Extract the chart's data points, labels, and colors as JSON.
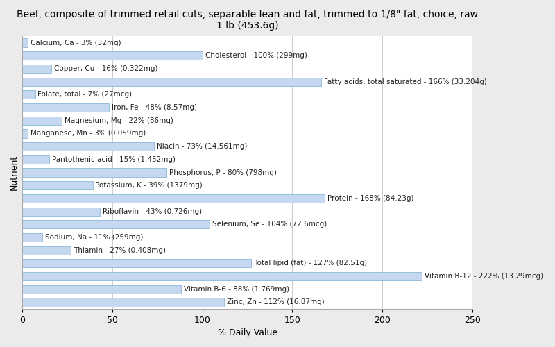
{
  "title": "Beef, composite of trimmed retail cuts, separable lean and fat, trimmed to 1/8\" fat, choice, raw\n1 lb (453.6g)",
  "xlabel": "% Daily Value",
  "ylabel": "Nutrient",
  "nutrients": [
    {
      "label": "Calcium, Ca - 3% (32mg)",
      "value": 3
    },
    {
      "label": "Cholesterol - 100% (299mg)",
      "value": 100
    },
    {
      "label": "Copper, Cu - 16% (0.322mg)",
      "value": 16
    },
    {
      "label": "Fatty acids, total saturated - 166% (33.204g)",
      "value": 166
    },
    {
      "label": "Folate, total - 7% (27mcg)",
      "value": 7
    },
    {
      "label": "Iron, Fe - 48% (8.57mg)",
      "value": 48
    },
    {
      "label": "Magnesium, Mg - 22% (86mg)",
      "value": 22
    },
    {
      "label": "Manganese, Mn - 3% (0.059mg)",
      "value": 3
    },
    {
      "label": "Niacin - 73% (14.561mg)",
      "value": 73
    },
    {
      "label": "Pantothenic acid - 15% (1.452mg)",
      "value": 15
    },
    {
      "label": "Phosphorus, P - 80% (798mg)",
      "value": 80
    },
    {
      "label": "Potassium, K - 39% (1379mg)",
      "value": 39
    },
    {
      "label": "Protein - 168% (84.23g)",
      "value": 168
    },
    {
      "label": "Riboflavin - 43% (0.726mg)",
      "value": 43
    },
    {
      "label": "Selenium, Se - 104% (72.6mcg)",
      "value": 104
    },
    {
      "label": "Sodium, Na - 11% (259mg)",
      "value": 11
    },
    {
      "label": "Thiamin - 27% (0.408mg)",
      "value": 27
    },
    {
      "label": "Total lipid (fat) - 127% (82.51g)",
      "value": 127
    },
    {
      "label": "Vitamin B-12 - 222% (13.29mcg)",
      "value": 222
    },
    {
      "label": "Vitamin B-6 - 88% (1.769mg)",
      "value": 88
    },
    {
      "label": "Zinc, Zn - 112% (16.87mg)",
      "value": 112
    }
  ],
  "bar_color": "#c5d8f0",
  "bar_edge_color": "#7aafd4",
  "background_color": "#ebebeb",
  "plot_background_color": "#ffffff",
  "xlim": [
    0,
    250
  ],
  "xticks": [
    0,
    50,
    100,
    150,
    200,
    250
  ],
  "title_fontsize": 10,
  "axis_label_fontsize": 9,
  "tick_fontsize": 9,
  "bar_label_fontsize": 7.5
}
